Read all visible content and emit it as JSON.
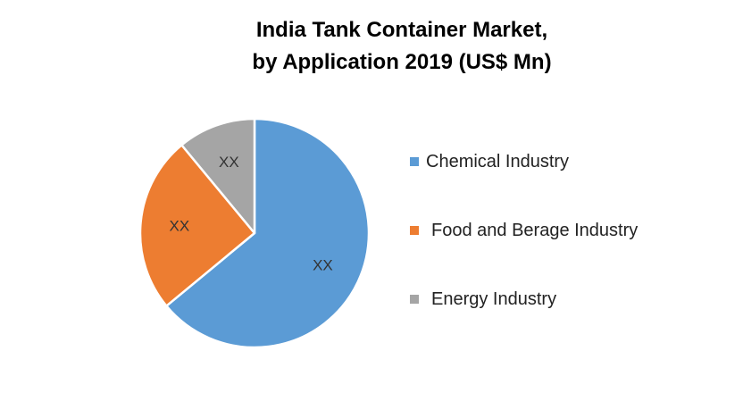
{
  "chart_data": {
    "type": "pie",
    "title_line1": "India Tank Container Market,",
    "title_line2": "by Application 2019 (US$ Mn)",
    "legend_position": "right",
    "slices": [
      {
        "label": "Chemical Industry",
        "value": 64,
        "data_label": "XX",
        "color": "#5B9BD5"
      },
      {
        "label": "Food and Berage Industry",
        "value": 25,
        "data_label": "XX",
        "color": "#ED7D31"
      },
      {
        "label": "Energy Industry",
        "value": 11,
        "data_label": "XX",
        "color": "#A5A5A5"
      }
    ]
  }
}
